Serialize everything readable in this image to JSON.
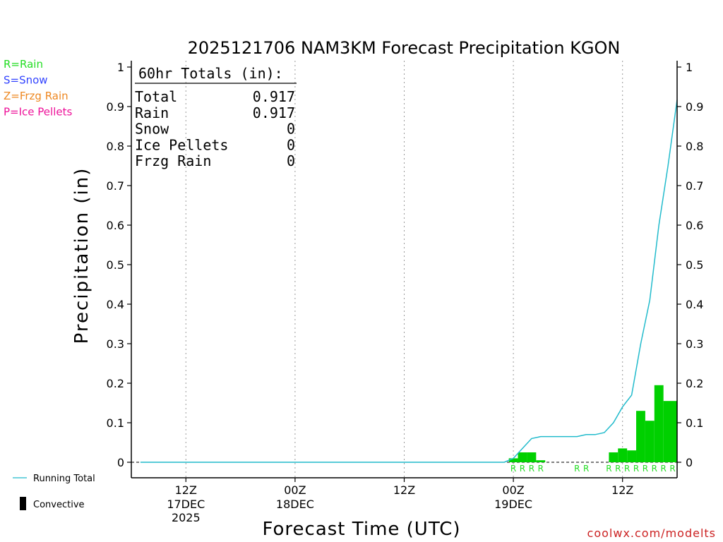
{
  "chart_data": {
    "type": "bar",
    "title": "2025121706 NAM3KM Forecast Precipitation KGON",
    "xlabel": "Forecast Time (UTC)",
    "ylabel": "Precipitation (in)",
    "ylim": [
      0,
      1
    ],
    "yticks": [
      "0",
      "0.1",
      "0.2",
      "0.3",
      "0.4",
      "0.5",
      "0.6",
      "0.7",
      "0.8",
      "0.9",
      "1"
    ],
    "xlim_hours": [
      0,
      60
    ],
    "xticks": [
      {
        "hour": 6,
        "label": "12Z",
        "sub1": "17DEC",
        "sub2": "2025"
      },
      {
        "hour": 18,
        "label": "00Z",
        "sub1": "18DEC",
        "sub2": ""
      },
      {
        "hour": 30,
        "label": "12Z",
        "sub1": "",
        "sub2": ""
      },
      {
        "hour": 42,
        "label": "00Z",
        "sub1": "19DEC",
        "sub2": ""
      },
      {
        "hour": 54,
        "label": "12Z",
        "sub1": "",
        "sub2": ""
      }
    ],
    "bars": [
      {
        "start": 41.5,
        "end": 42.5,
        "value": 0.01
      },
      {
        "start": 42.5,
        "end": 43.5,
        "value": 0.025
      },
      {
        "start": 43.5,
        "end": 44.5,
        "value": 0.025
      },
      {
        "start": 44.5,
        "end": 45.5,
        "value": 0.005
      },
      {
        "start": 52.5,
        "end": 53.5,
        "value": 0.025
      },
      {
        "start": 53.5,
        "end": 54.5,
        "value": 0.035
      },
      {
        "start": 54.5,
        "end": 55.5,
        "value": 0.03
      },
      {
        "start": 55.5,
        "end": 56.5,
        "value": 0.13
      },
      {
        "start": 56.5,
        "end": 57.5,
        "value": 0.105
      },
      {
        "start": 57.5,
        "end": 58.5,
        "value": 0.195
      },
      {
        "start": 58.5,
        "end": 60,
        "value": 0.155
      }
    ],
    "running_total": [
      [
        1,
        0
      ],
      [
        41,
        0
      ],
      [
        42,
        0.01
      ],
      [
        43,
        0.035
      ],
      [
        44,
        0.06
      ],
      [
        45,
        0.065
      ],
      [
        46,
        0.065
      ],
      [
        47,
        0.065
      ],
      [
        48,
        0.065
      ],
      [
        49,
        0.065
      ],
      [
        50,
        0.07
      ],
      [
        51,
        0.07
      ],
      [
        52,
        0.075
      ],
      [
        53,
        0.1
      ],
      [
        54,
        0.14
      ],
      [
        55,
        0.17
      ],
      [
        56,
        0.3
      ],
      [
        57,
        0.41
      ],
      [
        58,
        0.6
      ],
      [
        59,
        0.75
      ],
      [
        60,
        0.917
      ]
    ],
    "ptype_markers": [
      {
        "hour": 42,
        "label": "R"
      },
      {
        "hour": 43,
        "label": "R"
      },
      {
        "hour": 44,
        "label": "R"
      },
      {
        "hour": 45,
        "label": "R"
      },
      {
        "hour": 49,
        "label": "R"
      },
      {
        "hour": 50,
        "label": "R"
      },
      {
        "hour": 52.5,
        "label": "R"
      },
      {
        "hour": 53.5,
        "label": "R"
      },
      {
        "hour": 54.5,
        "label": "R"
      },
      {
        "hour": 55.5,
        "label": "R"
      },
      {
        "hour": 56.5,
        "label": "R"
      },
      {
        "hour": 57.5,
        "label": "R"
      },
      {
        "hour": 58.5,
        "label": "R"
      },
      {
        "hour": 59.5,
        "label": "R"
      }
    ],
    "legend_types": [
      {
        "label": "R=Rain",
        "color": "#22dd22"
      },
      {
        "label": "S=Snow",
        "color": "#3344ff"
      },
      {
        "label": "Z=Frzg Rain",
        "color": "#ee8822"
      },
      {
        "label": "P=Ice Pellets",
        "color": "#ee1199"
      }
    ],
    "legend_lines": {
      "running_total": "Running Total",
      "convective": "Convective"
    },
    "totals": {
      "header": "60hr Totals (in):",
      "rows": [
        {
          "label": "Total",
          "value": "0.917"
        },
        {
          "label": "Rain",
          "value": "0.917"
        },
        {
          "label": "Snow",
          "value": "0"
        },
        {
          "label": "Ice Pellets",
          "value": "0"
        },
        {
          "label": "Frzg Rain",
          "value": "0"
        }
      ]
    },
    "credit": "coolwx.com/modelts",
    "colors": {
      "bar": "#00d000",
      "running_total": "#22bbcc",
      "marker": "#22dd22",
      "credit": "#cc2222",
      "grid": "#999999"
    }
  }
}
